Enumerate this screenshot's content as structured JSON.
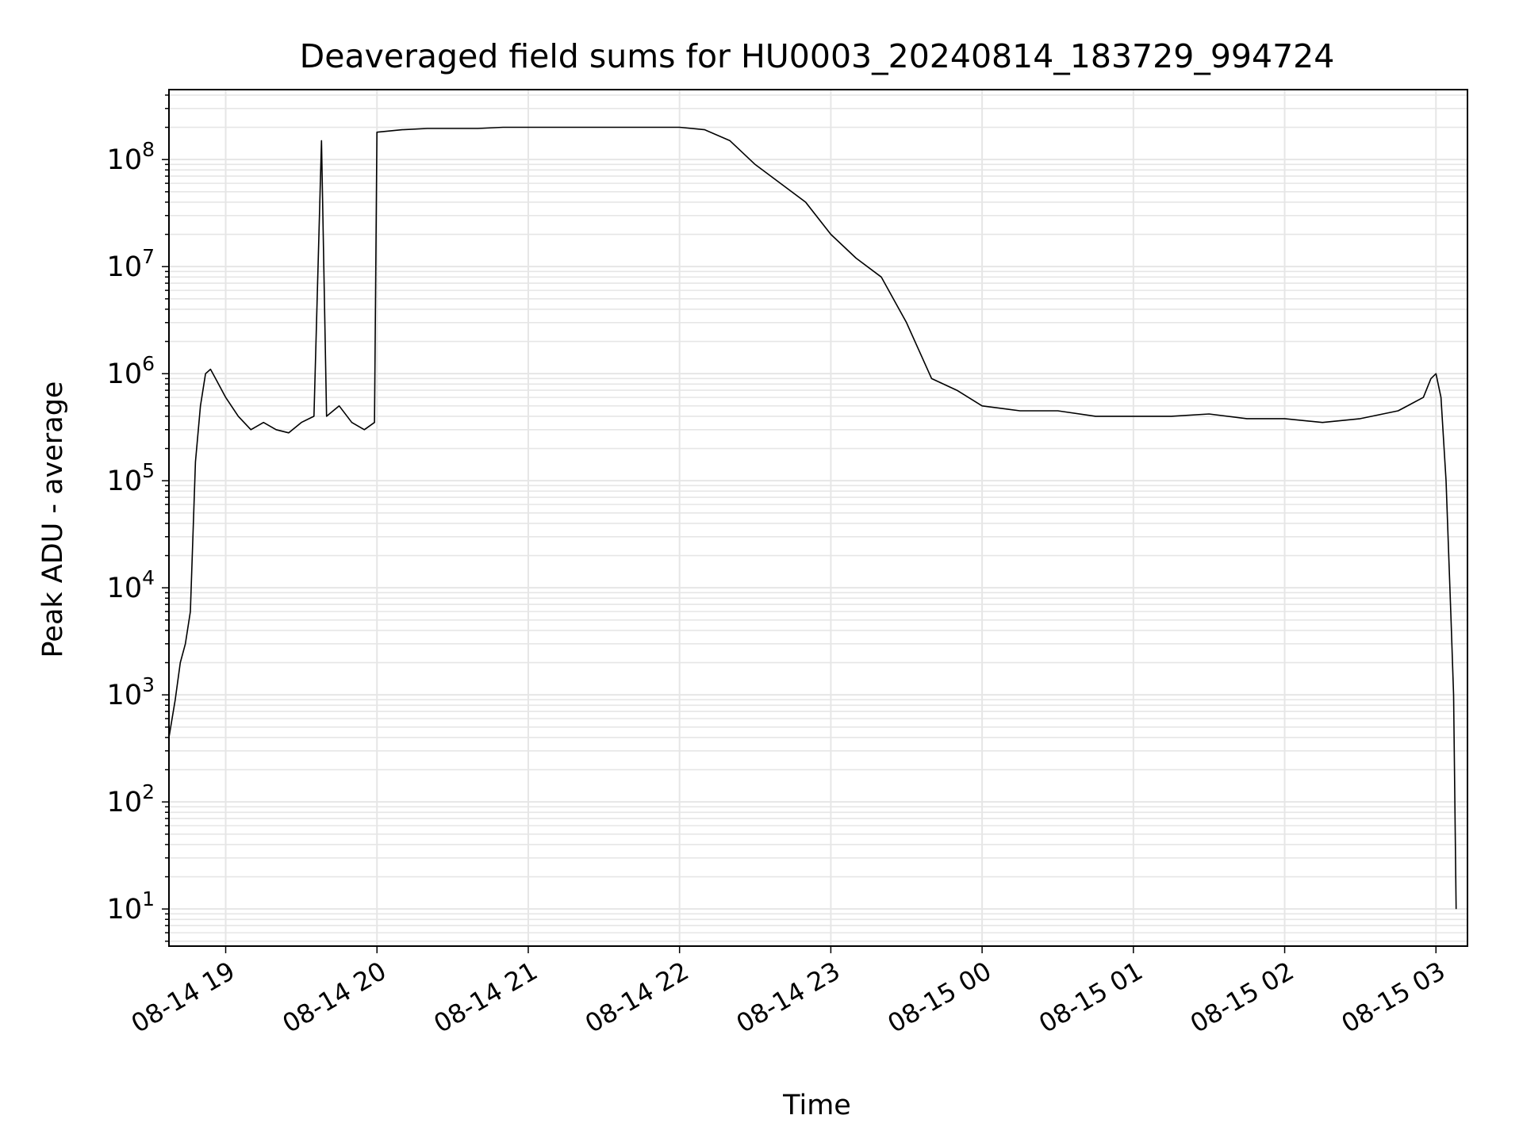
{
  "chart_data": {
    "type": "line",
    "title": "Deaveraged field sums for HU0003_20240814_183729_994724",
    "xlabel": "Time",
    "ylabel": "Peak ADU - average",
    "yscale": "log",
    "grid": true,
    "line_color": "#000000",
    "grid_color": "#e6e6e6",
    "xlim": [
      "2024-08-14T18:37:30",
      "2024-08-15T03:12:30"
    ],
    "ylim": [
      4.5,
      450000000
    ],
    "x_ticks": [
      {
        "t": "2024-08-14T19:00:00",
        "label": "08-14 19"
      },
      {
        "t": "2024-08-14T20:00:00",
        "label": "08-14 20"
      },
      {
        "t": "2024-08-14T21:00:00",
        "label": "08-14 21"
      },
      {
        "t": "2024-08-14T22:00:00",
        "label": "08-14 22"
      },
      {
        "t": "2024-08-14T23:00:00",
        "label": "08-14 23"
      },
      {
        "t": "2024-08-15T00:00:00",
        "label": "08-15 00"
      },
      {
        "t": "2024-08-15T01:00:00",
        "label": "08-15 01"
      },
      {
        "t": "2024-08-15T02:00:00",
        "label": "08-15 02"
      },
      {
        "t": "2024-08-15T03:00:00",
        "label": "08-15 03"
      }
    ],
    "y_ticks": [
      {
        "v": 10,
        "base": "10",
        "exp": "1"
      },
      {
        "v": 100,
        "base": "10",
        "exp": "2"
      },
      {
        "v": 1000,
        "base": "10",
        "exp": "3"
      },
      {
        "v": 10000,
        "base": "10",
        "exp": "4"
      },
      {
        "v": 100000,
        "base": "10",
        "exp": "5"
      },
      {
        "v": 1000000,
        "base": "10",
        "exp": "6"
      },
      {
        "v": 10000000,
        "base": "10",
        "exp": "7"
      },
      {
        "v": 100000000,
        "base": "10",
        "exp": "8"
      }
    ],
    "series": [
      {
        "x": [
          "2024-08-14T18:37:30",
          "2024-08-14T18:40:00",
          "2024-08-14T18:42:00",
          "2024-08-14T18:44:00",
          "2024-08-14T18:46:00",
          "2024-08-14T18:48:00",
          "2024-08-14T18:50:00",
          "2024-08-14T18:52:00",
          "2024-08-14T18:54:00",
          "2024-08-14T18:56:00",
          "2024-08-14T19:00:00",
          "2024-08-14T19:05:00",
          "2024-08-14T19:10:00",
          "2024-08-14T19:15:00",
          "2024-08-14T19:20:00",
          "2024-08-14T19:25:00",
          "2024-08-14T19:30:00",
          "2024-08-14T19:35:00",
          "2024-08-14T19:38:00",
          "2024-08-14T19:40:00",
          "2024-08-14T19:45:00",
          "2024-08-14T19:50:00",
          "2024-08-14T19:55:00",
          "2024-08-14T19:59:00",
          "2024-08-14T20:00:00",
          "2024-08-14T20:10:00",
          "2024-08-14T20:20:00",
          "2024-08-14T20:30:00",
          "2024-08-14T20:40:00",
          "2024-08-14T20:50:00",
          "2024-08-14T21:00:00",
          "2024-08-14T21:10:00",
          "2024-08-14T21:20:00",
          "2024-08-14T21:30:00",
          "2024-08-14T21:40:00",
          "2024-08-14T21:50:00",
          "2024-08-14T22:00:00",
          "2024-08-14T22:10:00",
          "2024-08-14T22:20:00",
          "2024-08-14T22:30:00",
          "2024-08-14T22:40:00",
          "2024-08-14T22:50:00",
          "2024-08-14T23:00:00",
          "2024-08-14T23:10:00",
          "2024-08-14T23:20:00",
          "2024-08-14T23:30:00",
          "2024-08-14T23:40:00",
          "2024-08-14T23:50:00",
          "2024-08-15T00:00:00",
          "2024-08-15T00:15:00",
          "2024-08-15T00:30:00",
          "2024-08-15T00:45:00",
          "2024-08-15T01:00:00",
          "2024-08-15T01:15:00",
          "2024-08-15T01:30:00",
          "2024-08-15T01:45:00",
          "2024-08-15T02:00:00",
          "2024-08-15T02:15:00",
          "2024-08-15T02:30:00",
          "2024-08-15T02:45:00",
          "2024-08-15T02:55:00",
          "2024-08-15T02:58:00",
          "2024-08-15T03:00:00",
          "2024-08-15T03:02:00",
          "2024-08-15T03:04:00",
          "2024-08-15T03:06:00",
          "2024-08-15T03:07:00",
          "2024-08-15T03:08:00"
        ],
        "y": [
          400,
          900,
          2000,
          3000,
          6000,
          150000,
          500000,
          1000000,
          1100000,
          900000,
          600000,
          400000,
          300000,
          350000,
          300000,
          280000,
          350000,
          400000,
          150000000,
          400000,
          500000,
          350000,
          300000,
          350000,
          180000000,
          190000000,
          195000000,
          195000000,
          195000000,
          200000000,
          200000000,
          200000000,
          200000000,
          200000000,
          200000000,
          200000000,
          200000000,
          190000000,
          150000000,
          90000000,
          60000000,
          40000000,
          20000000,
          12000000,
          8000000,
          3000000,
          900000,
          700000,
          500000,
          450000,
          450000,
          400000,
          400000,
          400000,
          420000,
          380000,
          380000,
          350000,
          380000,
          450000,
          600000,
          900000,
          1000000,
          600000,
          100000,
          5000,
          1000,
          10
        ]
      }
    ]
  }
}
